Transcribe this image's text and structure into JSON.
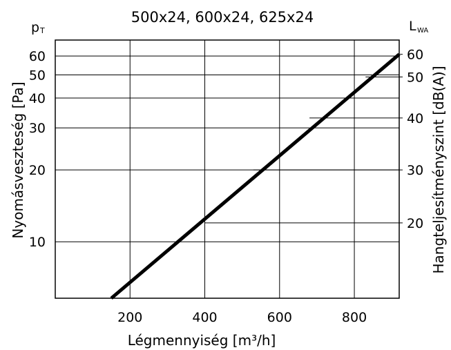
{
  "chart_data": {
    "type": "line",
    "title": "500x24, 600x24, 625x24",
    "xlabel": "Légmennyiség [m³/h]",
    "ylabel": "Nyomásveszteség [Pa]",
    "y2label": "Hangteljesítményszint [dB(A)]",
    "ysymbol": "p",
    "ysymbol_sub": "T",
    "y2symbol": "L",
    "y2symbol_sub": "WA",
    "x_scale": "linear",
    "y_scale": "log",
    "xlim": [
      0,
      920
    ],
    "ylim": [
      5.8,
      70
    ],
    "x_ticks": [
      200,
      400,
      600,
      800
    ],
    "x_tick_labels": [
      "200",
      "400",
      "600",
      "800"
    ],
    "y_ticks": [
      10,
      20,
      30,
      40,
      50,
      60
    ],
    "y_tick_labels": [
      "10",
      "20",
      "30",
      "40",
      "50",
      "60"
    ],
    "x_grid": [
      200,
      400,
      600,
      800
    ],
    "y_grid": [
      10,
      20,
      30,
      40,
      50,
      60
    ],
    "grid": true,
    "series": [
      {
        "x": [
          150,
          920
        ],
        "y": [
          5.8,
          61
        ]
      }
    ],
    "sound_scale": {
      "ticks": [
        {
          "label": "20",
          "p": 12
        },
        {
          "label": "30",
          "p": 20
        },
        {
          "label": "40",
          "p": 33
        },
        {
          "label": "50",
          "p": 49
        },
        {
          "label": "60",
          "p": 61
        }
      ],
      "guides": [
        {
          "x_from": 400,
          "p": 12
        },
        {
          "x_from": 530,
          "p": 20
        },
        {
          "x_from": 680,
          "p": 33
        },
        {
          "x_from": 830,
          "p": 49
        },
        {
          "x_from": 920,
          "p": 61
        }
      ]
    }
  }
}
